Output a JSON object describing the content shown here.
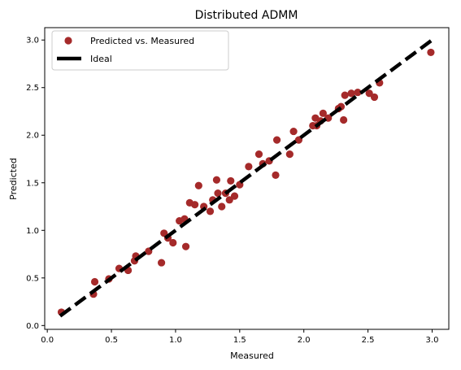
{
  "chart_data": {
    "type": "scatter",
    "title": "Distributed ADMM",
    "xlabel": "Measured",
    "ylabel": "Predicted",
    "xlim": [
      -0.02,
      3.13
    ],
    "ylim": [
      -0.04,
      3.13
    ],
    "xticks": [
      0.0,
      0.5,
      1.0,
      1.5,
      2.0,
      2.5,
      3.0
    ],
    "yticks": [
      0.0,
      0.5,
      1.0,
      1.5,
      2.0,
      2.5,
      3.0
    ],
    "xtick_labels": [
      "0.0",
      "0.5",
      "1.0",
      "1.5",
      "2.0",
      "2.5",
      "3.0"
    ],
    "ytick_labels": [
      "0.0",
      "0.5",
      "1.0",
      "1.5",
      "2.0",
      "2.5",
      "3.0"
    ],
    "grid": false,
    "legend_position": "top-left",
    "series": [
      {
        "name": "Predicted vs. Measured",
        "kind": "scatter",
        "color": "#a52a2a",
        "points": [
          [
            0.11,
            0.14
          ],
          [
            0.36,
            0.33
          ],
          [
            0.37,
            0.46
          ],
          [
            0.48,
            0.49
          ],
          [
            0.56,
            0.6
          ],
          [
            0.63,
            0.58
          ],
          [
            0.68,
            0.68
          ],
          [
            0.69,
            0.73
          ],
          [
            0.79,
            0.78
          ],
          [
            0.89,
            0.66
          ],
          [
            0.91,
            0.97
          ],
          [
            0.94,
            0.92
          ],
          [
            0.98,
            0.87
          ],
          [
            1.03,
            1.1
          ],
          [
            1.07,
            1.12
          ],
          [
            1.08,
            0.83
          ],
          [
            1.11,
            1.29
          ],
          [
            1.15,
            1.27
          ],
          [
            1.18,
            1.47
          ],
          [
            1.22,
            1.25
          ],
          [
            1.27,
            1.2
          ],
          [
            1.29,
            1.32
          ],
          [
            1.32,
            1.53
          ],
          [
            1.33,
            1.39
          ],
          [
            1.36,
            1.25
          ],
          [
            1.39,
            1.39
          ],
          [
            1.42,
            1.32
          ],
          [
            1.43,
            1.52
          ],
          [
            1.46,
            1.36
          ],
          [
            1.5,
            1.48
          ],
          [
            1.57,
            1.67
          ],
          [
            1.65,
            1.8
          ],
          [
            1.68,
            1.7
          ],
          [
            1.73,
            1.73
          ],
          [
            1.78,
            1.58
          ],
          [
            1.79,
            1.95
          ],
          [
            1.89,
            1.8
          ],
          [
            1.92,
            2.04
          ],
          [
            1.96,
            1.95
          ],
          [
            2.07,
            2.1
          ],
          [
            2.09,
            2.18
          ],
          [
            2.1,
            2.1
          ],
          [
            2.13,
            2.15
          ],
          [
            2.15,
            2.23
          ],
          [
            2.19,
            2.18
          ],
          [
            2.27,
            2.28
          ],
          [
            2.29,
            2.3
          ],
          [
            2.31,
            2.16
          ],
          [
            2.32,
            2.42
          ],
          [
            2.37,
            2.44
          ],
          [
            2.42,
            2.45
          ],
          [
            2.51,
            2.44
          ],
          [
            2.55,
            2.4
          ],
          [
            2.59,
            2.55
          ],
          [
            2.99,
            2.87
          ]
        ]
      },
      {
        "name": "Ideal",
        "kind": "line",
        "color": "#000000",
        "dash": "dashed",
        "points": [
          [
            0.1,
            0.1
          ],
          [
            3.0,
            3.0
          ]
        ]
      }
    ]
  }
}
